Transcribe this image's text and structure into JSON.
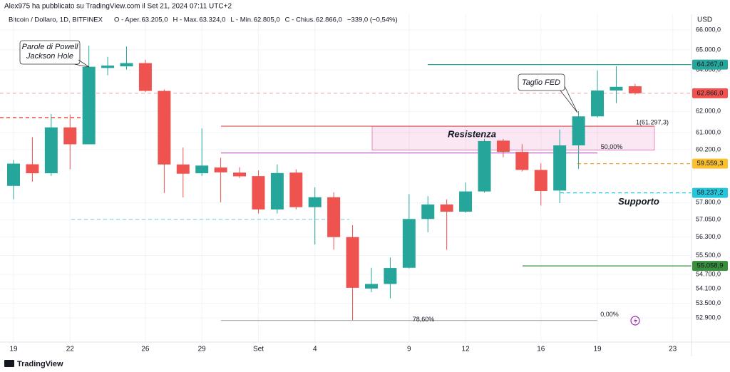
{
  "header": {
    "byline": "Alex975 ha pubblicato su TradingView.com il Set 21, 2024 07:11 UTC+2",
    "symbol": "Bitcoin / Dollaro, 1D, BITFINEX",
    "ohlc": [
      {
        "label": "O - Aper.",
        "value": "63.205,0"
      },
      {
        "label": "H - Max.",
        "value": "63.324,0"
      },
      {
        "label": "L - Min.",
        "value": "62.805,0"
      },
      {
        "label": "C - Chius.",
        "value": "62.866,0"
      }
    ],
    "change": "−339,0 (−0,54%)",
    "currency": "USD"
  },
  "chart_data": {
    "type": "candlestick",
    "log_scale": true,
    "grid": true,
    "up_color": "#26a69a",
    "down_color": "#ef5350",
    "categories": [
      "19",
      null,
      null,
      "22",
      null,
      null,
      null,
      "26",
      null,
      null,
      "29",
      null,
      null,
      "Set",
      null,
      null,
      "4",
      null,
      null,
      null,
      null,
      "9",
      null,
      null,
      "12",
      null,
      null,
      null,
      "16",
      null,
      null,
      "19",
      null,
      null,
      null,
      "23"
    ],
    "open": [
      58550,
      59530,
      59120,
      61240,
      60450,
      64100,
      64180,
      64340,
      62980,
      59520,
      59120,
      59380,
      59150,
      58990,
      57500,
      59150,
      57600,
      58040,
      56290,
      54110,
      54300,
      54980,
      57080,
      57720,
      57400,
      58300,
      60620,
      60100,
      59270,
      58340,
      60400,
      61760,
      63000,
      63205,
      null,
      null
    ],
    "high": [
      59730,
      60780,
      61880,
      61850,
      65210,
      64650,
      65170,
      64510,
      63050,
      60300,
      61190,
      59830,
      59400,
      59250,
      59520,
      59300,
      58480,
      58260,
      56810,
      54980,
      55420,
      58180,
      58090,
      57950,
      58700,
      60700,
      60700,
      60460,
      59570,
      61140,
      62010,
      63980,
      64190,
      63324,
      null,
      null
    ],
    "low": [
      57950,
      58740,
      59000,
      59300,
      60450,
      63740,
      64020,
      62920,
      58230,
      58030,
      59000,
      57820,
      58900,
      57320,
      57320,
      57500,
      55970,
      55750,
      52810,
      53960,
      53700,
      54950,
      56500,
      55740,
      57350,
      58250,
      59850,
      59200,
      57670,
      57780,
      59320,
      61700,
      62390,
      62805,
      null,
      null
    ],
    "close": [
      59560,
      59120,
      61240,
      60450,
      64160,
      64220,
      64340,
      62980,
      59520,
      59100,
      59470,
      59160,
      58980,
      57500,
      59130,
      57600,
      58040,
      56290,
      54140,
      54300,
      54970,
      57080,
      57720,
      57400,
      58300,
      60600,
      60100,
      59270,
      58320,
      60400,
      61760,
      63000,
      63180,
      62866,
      null,
      null
    ],
    "ylim": [
      51930,
      66800
    ],
    "yticks": [
      {
        "value": 66000,
        "label": "66.000,0"
      },
      {
        "value": 65000,
        "label": "65.000,0"
      },
      {
        "value": 64000,
        "label": "64.000,0"
      },
      {
        "value": 62000,
        "label": "62.000,0"
      },
      {
        "value": 61000,
        "label": "61.000,0"
      },
      {
        "value": 60200,
        "label": "60.200,0"
      },
      {
        "value": 57800,
        "label": "57.800,0"
      },
      {
        "value": 57050,
        "label": "57.050,0"
      },
      {
        "value": 56300,
        "label": "56.300,0"
      },
      {
        "value": 55500,
        "label": "55.500,0"
      },
      {
        "value": 54700,
        "label": "54.700,0"
      },
      {
        "value": 54100,
        "label": "54.100,0"
      },
      {
        "value": 53500,
        "label": "53.500,0"
      },
      {
        "value": 52900,
        "label": "52.900,0"
      }
    ],
    "levels": [
      {
        "value": 61700,
        "color": "#e53935",
        "dash": true
      },
      {
        "value": 57060,
        "color": "#8fd3ee",
        "dash": true
      },
      {
        "value": 61297.3,
        "color": "#e57373",
        "dash": false
      },
      {
        "value": 60050,
        "color": "#ba68c8",
        "dash": false
      },
      {
        "value": 52800,
        "color": "#b0b0b0",
        "dash": false
      },
      {
        "value": 64267,
        "color": "#26a69a",
        "dash": false
      },
      {
        "value": 59559.3,
        "color": "#f5a623",
        "dash": true
      },
      {
        "value": 58237.2,
        "color": "#26c6da",
        "dash": true
      },
      {
        "value": 55058.9,
        "color": "#388e3c",
        "dash": false
      },
      {
        "value": 62866,
        "color": "#f4b4b4",
        "dash": true
      }
    ],
    "zone": {
      "label": "Resistenza",
      "range": [
        60180,
        61290
      ],
      "color": "#e040a0"
    },
    "price_labels": [
      {
        "value": 64267,
        "label": "64.267,0",
        "color": "#26a69a",
        "text_color": "#ffffff"
      },
      {
        "value": 62866,
        "label": "62.866,0",
        "color": "#ef5350",
        "text_color": "#ffffff"
      },
      {
        "value": 59559.3,
        "label": "59.559,3",
        "color": "#fbc02d",
        "text_color": "#000000"
      },
      {
        "value": 58237.2,
        "label": "58.237,2",
        "color": "#26c6da",
        "text_color": "#ffffff"
      },
      {
        "value": 55058.9,
        "label": "55.058,9",
        "color": "#388e3c",
        "text_color": "#ffffff"
      }
    ],
    "annotations": [
      "Supporto",
      "1(61.297,3)",
      "50,00%",
      "78,60%",
      "0,00%"
    ],
    "callouts": [
      [
        "Parole di Powell",
        "Jackson Hole"
      ],
      [
        "Taglio FED"
      ]
    ]
  },
  "footer": "TradingView"
}
